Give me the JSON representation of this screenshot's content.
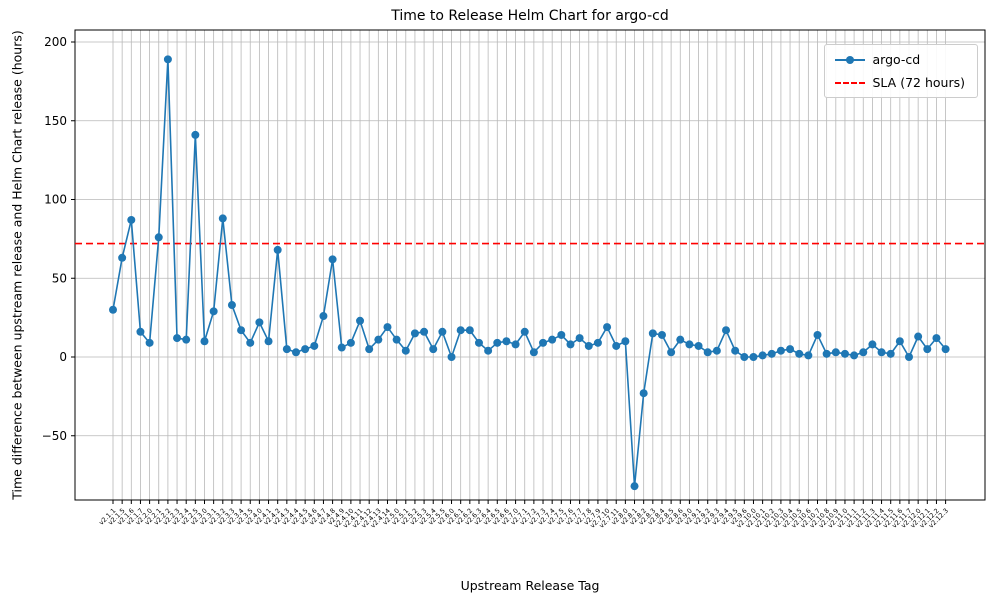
{
  "figure": {
    "title": "Time to Release Helm Chart for argo-cd",
    "xlabel": "Upstream Release Tag",
    "ylabel": "Time difference between upstream release and Helm Chart release (hours)"
  },
  "legend": {
    "series_label": "argo-cd",
    "sla_label": "SLA (72 hours)"
  },
  "colors": {
    "series": "#1f77b4",
    "sla": "#ff0000",
    "grid": "#b8b8b8",
    "axis": "#000000"
  },
  "chart_data": {
    "type": "line",
    "title": "Time to Release Helm Chart for argo-cd",
    "xlabel": "Upstream Release Tag",
    "ylabel": "Time difference between upstream release and Helm Chart release (hours)",
    "legend_position": "upper right",
    "grid": true,
    "ylim": [
      -91,
      208
    ],
    "yticks": [
      200,
      150,
      100,
      50,
      0,
      -50
    ],
    "sla_hours": 72,
    "categories": [
      "v2.1.1",
      "v2.1.5",
      "v2.1.6",
      "v2.1.7",
      "v2.2.0",
      "v2.2.1",
      "v2.2.2",
      "v2.2.3",
      "v2.2.4",
      "v2.2.5",
      "v2.3.0",
      "v2.3.1",
      "v2.3.2",
      "v2.3.3",
      "v2.3.4",
      "v2.3.5",
      "v2.4.0",
      "v2.4.1",
      "v2.4.2",
      "v2.4.3",
      "v2.4.4",
      "v2.4.5",
      "v2.4.6",
      "v2.4.7",
      "v2.4.8",
      "v2.4.9",
      "v2.4.10",
      "v2.4.11",
      "v2.4.12",
      "v2.4.13",
      "v2.4.14",
      "v2.5.0",
      "v2.5.1",
      "v2.5.2",
      "v2.5.3",
      "v2.5.4",
      "v2.5.5",
      "v2.6.0",
      "v2.6.1",
      "v2.6.2",
      "v2.6.3",
      "v2.6.4",
      "v2.6.5",
      "v2.6.6",
      "v2.7.0",
      "v2.7.1",
      "v2.7.2",
      "v2.7.3",
      "v2.7.4",
      "v2.7.5",
      "v2.7.6",
      "v2.7.7",
      "v2.7.8",
      "v2.7.9",
      "v2.7.10",
      "v2.7.11",
      "v2.8.0",
      "v2.8.1",
      "v2.8.2",
      "v2.8.3",
      "v2.8.4",
      "v2.8.5",
      "v2.8.6",
      "v2.9.0",
      "v2.9.1",
      "v2.9.2",
      "v2.9.3",
      "v2.9.4",
      "v2.9.5",
      "v2.9.6",
      "v2.10.0",
      "v2.10.1",
      "v2.10.2",
      "v2.10.3",
      "v2.10.4",
      "v2.10.5",
      "v2.10.6",
      "v2.10.7",
      "v2.10.8",
      "v2.10.9",
      "v2.11.0",
      "v2.11.1",
      "v2.11.2",
      "v2.11.3",
      "v2.11.4",
      "v2.11.5",
      "v2.11.6",
      "v2.11.7",
      "v2.12.0",
      "v2.12.1",
      "v2.12.2",
      "v2.12.3"
    ],
    "series": [
      {
        "name": "argo-cd",
        "values": [
          30,
          63,
          87,
          16,
          9,
          76,
          189,
          12,
          11,
          141,
          10,
          29,
          88,
          33,
          17,
          9,
          22,
          10,
          68,
          5,
          3,
          5,
          7,
          26,
          62,
          6,
          9,
          23,
          5,
          11,
          19,
          11,
          4,
          15,
          16,
          5,
          16,
          0,
          17,
          17,
          9,
          4,
          9,
          10,
          8,
          16,
          3,
          9,
          11,
          14,
          8,
          12,
          7,
          9,
          19,
          7,
          10,
          -82,
          -23,
          15,
          14,
          3,
          11,
          8,
          7,
          3,
          4,
          17,
          4,
          0,
          0,
          1,
          2,
          4,
          5,
          2,
          1,
          14,
          2,
          3,
          2,
          1,
          3,
          8,
          3,
          2,
          10,
          0,
          13,
          5,
          12,
          5
        ]
      }
    ]
  }
}
